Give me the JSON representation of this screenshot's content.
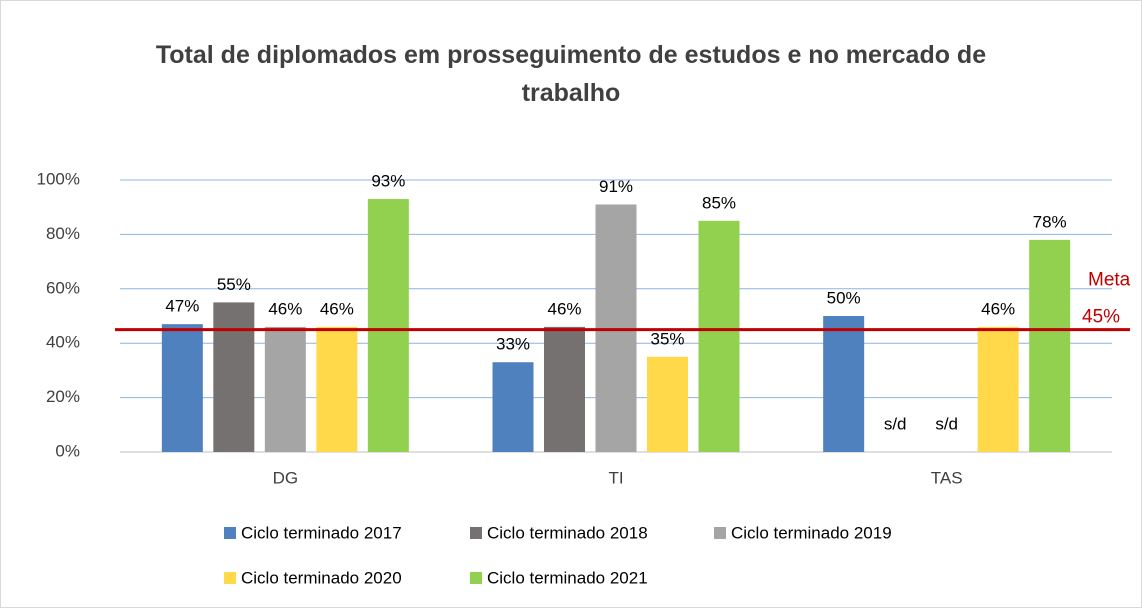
{
  "chart_data": {
    "type": "bar",
    "title": "Total de diplomados em prosseguimento de estudos e no mercado de trabalho",
    "categories": [
      "DG",
      "TI",
      "TAS"
    ],
    "series": [
      {
        "name": "Ciclo terminado 2017",
        "color": "#4e81bd",
        "values": [
          47,
          33,
          50
        ],
        "value_labels": [
          "47%",
          "33%",
          "50%"
        ]
      },
      {
        "name": "Ciclo terminado 2018",
        "color": "#767171",
        "values": [
          55,
          46,
          null
        ],
        "value_labels": [
          "55%",
          "46%",
          "s/d"
        ]
      },
      {
        "name": "Ciclo terminado 2019",
        "color": "#a5a5a5",
        "values": [
          46,
          91,
          null
        ],
        "value_labels": [
          "46%",
          "91%",
          "s/d"
        ]
      },
      {
        "name": "Ciclo terminado 2020",
        "color": "#ffd94a",
        "values": [
          46,
          35,
          46
        ],
        "value_labels": [
          "46%",
          "35%",
          "46%"
        ]
      },
      {
        "name": "Ciclo terminado 2021",
        "color": "#92d050",
        "values": [
          93,
          85,
          78
        ],
        "value_labels": [
          "93%",
          "85%",
          "78%"
        ]
      }
    ],
    "ylim": [
      0,
      100
    ],
    "yticks": [
      {
        "value": 0,
        "label": "0%"
      },
      {
        "value": 20,
        "label": "20%"
      },
      {
        "value": 40,
        "label": "40%"
      },
      {
        "value": 60,
        "label": "60%"
      },
      {
        "value": 80,
        "label": "80%"
      },
      {
        "value": 100,
        "label": "100%"
      }
    ],
    "grid": true,
    "legend": "bottom",
    "target": {
      "name": "Meta",
      "value": 45,
      "label": "45%",
      "color": "#c00000"
    }
  }
}
